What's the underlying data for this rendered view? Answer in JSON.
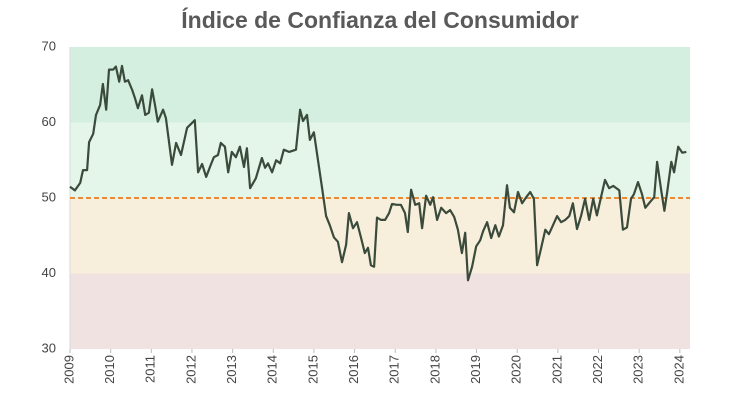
{
  "chart_data": {
    "type": "line",
    "title": "Índice de Confianza del Consumidor",
    "x": [
      2009.0,
      2009.12,
      2009.25,
      2009.32,
      2009.42,
      2009.47,
      2009.57,
      2009.64,
      2009.74,
      2009.81,
      2009.89,
      2009.96,
      2010.06,
      2010.13,
      2010.21,
      2010.28,
      2010.35,
      2010.43,
      2010.53,
      2010.6,
      2010.67,
      2010.77,
      2010.85,
      2010.94,
      2011.02,
      2011.09,
      2011.16,
      2011.29,
      2011.36,
      2011.51,
      2011.61,
      2011.73,
      2011.88,
      2012.07,
      2012.15,
      2012.25,
      2012.35,
      2012.47,
      2012.54,
      2012.64,
      2012.71,
      2012.81,
      2012.89,
      2012.98,
      2013.08,
      2013.18,
      2013.28,
      2013.35,
      2013.43,
      2013.57,
      2013.72,
      2013.8,
      2013.87,
      2013.97,
      2014.07,
      2014.17,
      2014.26,
      2014.39,
      2014.56,
      2014.66,
      2014.73,
      2014.83,
      2014.9,
      2015.0,
      2015.1,
      2015.2,
      2015.3,
      2015.39,
      2015.49,
      2015.59,
      2015.69,
      2015.79,
      2015.86,
      2015.96,
      2016.06,
      2016.16,
      2016.25,
      2016.33,
      2016.4,
      2016.48,
      2016.55,
      2016.65,
      2016.75,
      2016.85,
      2016.92,
      2017.04,
      2017.14,
      2017.24,
      2017.31,
      2017.39,
      2017.49,
      2017.59,
      2017.66,
      2017.76,
      2017.86,
      2017.93,
      2018.03,
      2018.13,
      2018.25,
      2018.35,
      2018.45,
      2018.54,
      2018.64,
      2018.72,
      2018.79,
      2018.89,
      2018.99,
      2019.09,
      2019.16,
      2019.26,
      2019.36,
      2019.46,
      2019.55,
      2019.65,
      2019.75,
      2019.82,
      2019.92,
      2020.02,
      2020.12,
      2020.22,
      2020.32,
      2020.41,
      2020.49,
      2020.59,
      2020.69,
      2020.78,
      2020.88,
      2020.98,
      2021.08,
      2021.18,
      2021.28,
      2021.37,
      2021.47,
      2021.57,
      2021.67,
      2021.77,
      2021.87,
      2021.96,
      2022.06,
      2022.16,
      2022.26,
      2022.36,
      2022.51,
      2022.6,
      2022.7,
      2022.8,
      2022.87,
      2022.97,
      2023.07,
      2023.15,
      2023.27,
      2023.37,
      2023.44,
      2023.54,
      2023.62,
      2023.69,
      2023.79,
      2023.86,
      2023.96,
      2024.06,
      2024.16
    ],
    "values": [
      51.5,
      51.0,
      52,
      53.7,
      53.7,
      57.4,
      58.5,
      61,
      62.3,
      65.1,
      61.7,
      67,
      67,
      67.4,
      65.4,
      67.5,
      65.4,
      65.6,
      64.3,
      63.2,
      61.9,
      63.6,
      61,
      61.3,
      64.4,
      62.3,
      60.1,
      61.7,
      60.6,
      54.4,
      57.3,
      55.7,
      59.3,
      60.3,
      53.4,
      54.5,
      52.8,
      54.5,
      55.4,
      55.7,
      57.3,
      56.8,
      53.4,
      56.1,
      55.4,
      56.8,
      54.1,
      56.6,
      51.3,
      52.6,
      55.3,
      54,
      54.6,
      53.4,
      55,
      54.6,
      56.4,
      56.1,
      56.4,
      61.7,
      60.2,
      61,
      57.7,
      58.7,
      55,
      51.3,
      47.6,
      46.4,
      44.8,
      44.2,
      41.5,
      43.8,
      48,
      46,
      46.8,
      44.7,
      42.7,
      43.4,
      41.1,
      40.9,
      47.4,
      47.1,
      47.1,
      48,
      49.2,
      49.1,
      49.1,
      48,
      45.5,
      51.1,
      49.1,
      49.3,
      46,
      50.3,
      49.1,
      50.1,
      47.1,
      48.7,
      48,
      48.4,
      47.5,
      45.8,
      42.7,
      45.4,
      39.1,
      40.9,
      43.6,
      44.4,
      45.6,
      46.8,
      44.7,
      46.4,
      44.9,
      46.4,
      51.7,
      48.7,
      48.1,
      50.8,
      49.3,
      50.1,
      50.8,
      49.9,
      41.1,
      43.4,
      45.8,
      45.2,
      46.4,
      47.6,
      46.8,
      47.1,
      47.6,
      49.3,
      45.9,
      47.6,
      49.9,
      47.1,
      49.9,
      47.7,
      50.1,
      52.4,
      51.3,
      51.6,
      51,
      45.8,
      46.1,
      49.9,
      50.5,
      52.1,
      50.5,
      48.7,
      49.5,
      50.1,
      54.8,
      51.1,
      48.3,
      50.8,
      54.8,
      53.4,
      56.8,
      56,
      56.1
    ],
    "color": "#3a4a3b",
    "xlim": [
      2009,
      2024.25
    ],
    "xticks": [
      2009,
      2010,
      2011,
      2012,
      2013,
      2014,
      2015,
      2016,
      2017,
      2018,
      2019,
      2020,
      2021,
      2022,
      2023,
      2024
    ],
    "ylim": [
      30,
      70
    ],
    "yticks": [
      30,
      40,
      50,
      60,
      70
    ],
    "bands": [
      {
        "from": 60,
        "to": 70,
        "color": "#d4efdf"
      },
      {
        "from": 50,
        "to": 60,
        "color": "#e4f5e9"
      },
      {
        "from": 40,
        "to": 50,
        "color": "#f7efdc"
      },
      {
        "from": 30,
        "to": 40,
        "color": "#f1e2e2"
      }
    ],
    "reference_line": {
      "value": 50,
      "color": "#e67e22"
    }
  }
}
